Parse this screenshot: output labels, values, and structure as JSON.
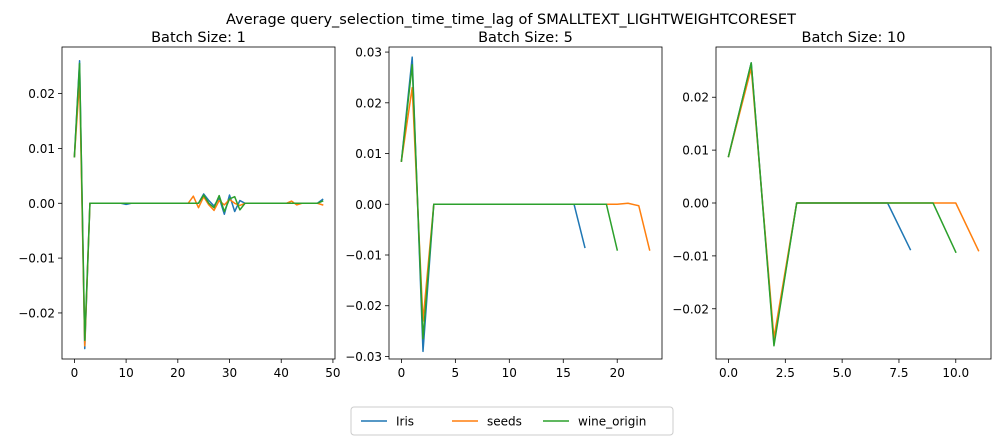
{
  "suptitle": "Average query_selection_time_time_lag of SMALLTEXT_LIGHTWEIGHTCORESET",
  "colors": {
    "Iris": "#1f77b4",
    "seeds": "#ff7f0e",
    "wine_origin": "#2ca02c"
  },
  "legend": {
    "placement": "bottom-center",
    "entries": [
      "Iris",
      "seeds",
      "wine_origin"
    ]
  },
  "chart_data": [
    {
      "type": "line",
      "title": "Batch Size: 1",
      "xlim": [
        -2.4,
        50.4
      ],
      "ylim": [
        -0.0284,
        0.0285
      ],
      "xticks": [
        0,
        10,
        20,
        30,
        40,
        50
      ],
      "xtick_labels": [
        "0",
        "10",
        "20",
        "30",
        "40",
        "50"
      ],
      "yticks": [
        -0.02,
        -0.01,
        0.0,
        0.01,
        0.02
      ],
      "ytick_labels": [
        "−0.02",
        "−0.01",
        "0.00",
        "0.01",
        "0.02"
      ],
      "series": [
        {
          "name": "Iris",
          "x": [
            0,
            1,
            2,
            3,
            4,
            5,
            6,
            7,
            8,
            9,
            10,
            11,
            12,
            13,
            14,
            15,
            16,
            17,
            18,
            19,
            20,
            21,
            22,
            23,
            24,
            25,
            26,
            27,
            28,
            29,
            30,
            31,
            32,
            33,
            34,
            35,
            36,
            37,
            38,
            39,
            40,
            41,
            42,
            43,
            44,
            45,
            46,
            47,
            48
          ],
          "y": [
            0.0085,
            0.026,
            -0.0265,
            0.0,
            0.0,
            0.0,
            0.0,
            0.0,
            0.0,
            0.0,
            -0.0002,
            0.0,
            0.0,
            0.0,
            0.0,
            0.0,
            0.0,
            0.0,
            0.0,
            0.0,
            0.0,
            0.0,
            0.0,
            0.0,
            0.0,
            0.0017,
            0.0005,
            -0.0005,
            0.001,
            -0.002,
            0.0015,
            -0.0015,
            0.0005,
            0.0,
            0.0,
            0.0,
            0.0,
            0.0,
            0.0,
            0.0,
            0.0,
            0.0,
            0.0,
            0.0,
            0.0,
            0.0,
            0.0,
            0.0,
            0.0007
          ]
        },
        {
          "name": "seeds",
          "x": [
            0,
            1,
            2,
            3,
            4,
            5,
            6,
            7,
            8,
            9,
            10,
            11,
            12,
            13,
            14,
            15,
            16,
            17,
            18,
            19,
            20,
            21,
            22,
            23,
            24,
            25,
            26,
            27,
            28,
            29,
            30,
            31,
            32,
            33,
            34,
            35,
            36,
            37,
            38,
            39,
            40,
            41,
            42,
            43,
            44,
            45,
            46,
            47,
            48
          ],
          "y": [
            0.0085,
            0.0225,
            -0.026,
            0.0,
            0.0,
            0.0,
            0.0,
            0.0,
            0.0,
            0.0,
            0.0,
            0.0,
            0.0,
            0.0,
            0.0,
            0.0,
            0.0,
            0.0,
            0.0,
            0.0,
            0.0,
            0.0,
            0.0,
            0.0013,
            -0.0008,
            0.0012,
            -0.0003,
            -0.0013,
            0.0005,
            -0.0003,
            0.0007,
            0.0,
            -0.0004,
            0.0,
            0.0,
            0.0,
            0.0,
            0.0,
            0.0,
            0.0,
            0.0,
            0.0,
            0.0004,
            -0.0003,
            0.0,
            0.0,
            0.0,
            0.0,
            -0.0003
          ]
        },
        {
          "name": "wine_origin",
          "x": [
            0,
            1,
            2,
            3,
            4,
            5,
            6,
            7,
            8,
            9,
            10,
            11,
            12,
            13,
            14,
            15,
            16,
            17,
            18,
            19,
            20,
            21,
            22,
            23,
            24,
            25,
            26,
            27,
            28,
            29,
            30,
            31,
            32,
            33,
            34,
            35,
            36,
            37,
            38,
            39,
            40,
            41,
            42,
            43,
            44,
            45,
            46,
            47,
            48
          ],
          "y": [
            0.0085,
            0.0255,
            -0.025,
            0.0,
            0.0,
            0.0,
            0.0,
            0.0,
            0.0,
            0.0,
            0.0,
            0.0,
            0.0,
            0.0,
            0.0,
            0.0,
            0.0,
            0.0,
            0.0,
            0.0,
            0.0,
            0.0,
            0.0,
            0.0,
            0.0,
            0.0015,
            0.0,
            -0.0008,
            0.0014,
            -0.0015,
            0.0008,
            0.0012,
            -0.0012,
            0.0,
            0.0,
            0.0,
            0.0,
            0.0,
            0.0,
            0.0,
            0.0,
            0.0,
            0.0,
            0.0,
            0.0,
            0.0,
            0.0,
            0.0,
            0.0004
          ]
        }
      ]
    },
    {
      "type": "line",
      "title": "Batch Size: 5",
      "xlim": [
        -1.15,
        24.15
      ],
      "ylim": [
        -0.0305,
        0.031
      ],
      "xticks": [
        0,
        5,
        10,
        15,
        20
      ],
      "xtick_labels": [
        "0",
        "5",
        "10",
        "15",
        "20"
      ],
      "yticks": [
        -0.03,
        -0.02,
        -0.01,
        0.0,
        0.01,
        0.02,
        0.03
      ],
      "ytick_labels": [
        "−0.03",
        "−0.02",
        "−0.01",
        "0.00",
        "0.01",
        "0.02",
        "0.03"
      ],
      "series": [
        {
          "name": "Iris",
          "x": [
            0,
            1,
            2,
            3,
            4,
            5,
            6,
            7,
            8,
            9,
            10,
            11,
            12,
            13,
            14,
            15,
            16,
            17
          ],
          "y": [
            0.0085,
            0.029,
            -0.029,
            0.0,
            0.0,
            0.0,
            0.0,
            0.0,
            0.0,
            0.0,
            0.0,
            0.0,
            0.0,
            0.0,
            0.0,
            0.0,
            0.0,
            -0.0085
          ]
        },
        {
          "name": "seeds",
          "x": [
            0,
            1,
            2,
            3,
            4,
            5,
            6,
            7,
            8,
            9,
            10,
            11,
            12,
            13,
            14,
            15,
            16,
            17,
            18,
            19,
            20,
            21,
            22,
            23
          ],
          "y": [
            0.0085,
            0.023,
            -0.023,
            0.0,
            0.0,
            0.0,
            0.0,
            0.0,
            0.0,
            0.0,
            0.0,
            0.0,
            0.0,
            0.0,
            0.0,
            0.0,
            0.0,
            0.0,
            0.0,
            0.0,
            0.0,
            0.0002,
            -0.0003,
            -0.009
          ]
        },
        {
          "name": "wine_origin",
          "x": [
            0,
            1,
            2,
            3,
            4,
            5,
            6,
            7,
            8,
            9,
            10,
            11,
            12,
            13,
            14,
            15,
            16,
            17,
            18,
            19,
            20
          ],
          "y": [
            0.0085,
            0.0275,
            -0.0265,
            0.0,
            0.0,
            0.0,
            0.0,
            0.0,
            0.0,
            0.0,
            0.0,
            0.0,
            0.0,
            0.0,
            0.0,
            0.0,
            0.0,
            0.0,
            0.0,
            0.0,
            -0.009
          ]
        }
      ]
    },
    {
      "type": "line",
      "title": "Batch Size: 10",
      "xlim": [
        -0.55,
        11.55
      ],
      "ylim": [
        -0.0295,
        0.0295
      ],
      "xticks": [
        0.0,
        2.5,
        5.0,
        7.5,
        10.0
      ],
      "xtick_labels": [
        "0.0",
        "2.5",
        "5.0",
        "7.5",
        "10.0"
      ],
      "yticks": [
        -0.02,
        -0.01,
        0.0,
        0.01,
        0.02
      ],
      "ytick_labels": [
        "−0.02",
        "−0.01",
        "0.00",
        "0.01",
        "0.02"
      ],
      "series": [
        {
          "name": "Iris",
          "x": [
            0,
            1,
            2,
            3,
            4,
            5,
            6,
            7,
            8
          ],
          "y": [
            0.0088,
            0.0265,
            -0.0265,
            0.0,
            0.0,
            0.0,
            0.0,
            0.0,
            -0.0088
          ]
        },
        {
          "name": "seeds",
          "x": [
            0,
            1,
            2,
            3,
            4,
            5,
            6,
            7,
            8,
            9,
            10,
            11
          ],
          "y": [
            0.0088,
            0.0255,
            -0.0255,
            0.0,
            0.0,
            0.0,
            0.0,
            0.0,
            0.0,
            0.0,
            0.0,
            -0.009
          ]
        },
        {
          "name": "wine_origin",
          "x": [
            0,
            1,
            2,
            3,
            4,
            5,
            6,
            7,
            8,
            9,
            10
          ],
          "y": [
            0.0088,
            0.0265,
            -0.027,
            0.0,
            0.0,
            0.0,
            0.0,
            0.0,
            0.0,
            0.0,
            -0.0093
          ]
        }
      ]
    }
  ]
}
